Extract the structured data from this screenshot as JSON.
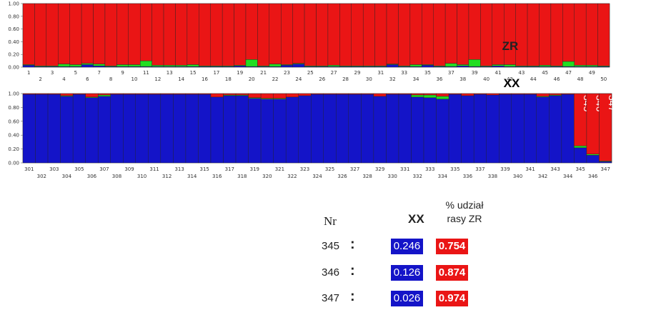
{
  "colors": {
    "xx": "#1414c8",
    "zr": "#ea1515",
    "other": "#22dd22"
  },
  "chart_data": [
    {
      "type": "bar",
      "stacked": true,
      "categories": [
        "1",
        "2",
        "3",
        "4",
        "5",
        "6",
        "7",
        "8",
        "9",
        "10",
        "11",
        "12",
        "13",
        "14",
        "15",
        "16",
        "17",
        "18",
        "19",
        "20",
        "21",
        "22",
        "23",
        "24",
        "25",
        "26",
        "27",
        "28",
        "29",
        "30",
        "31",
        "32",
        "33",
        "34",
        "35",
        "36",
        "37",
        "38",
        "39",
        "40",
        "41",
        "42",
        "43",
        "44",
        "45",
        "46",
        "47",
        "48",
        "49",
        "50"
      ],
      "series": [
        {
          "key": "xx",
          "values": [
            0.03,
            0.01,
            0.01,
            0.01,
            0.01,
            0.04,
            0.02,
            0.01,
            0.01,
            0.01,
            0.01,
            0.01,
            0.01,
            0.01,
            0.01,
            0.01,
            0.01,
            0.01,
            0.02,
            0.01,
            0.01,
            0.01,
            0.03,
            0.05,
            0.01,
            0.01,
            0.01,
            0.01,
            0.01,
            0.01,
            0.01,
            0.04,
            0.01,
            0.01,
            0.03,
            0.01,
            0.01,
            0.02,
            0.01,
            0.01,
            0.02,
            0.01,
            0.01,
            0.01,
            0.01,
            0.01,
            0.01,
            0.01,
            0.01,
            0.01
          ]
        },
        {
          "key": "other",
          "values": [
            0.01,
            0.01,
            0.01,
            0.04,
            0.03,
            0.02,
            0.03,
            0.01,
            0.03,
            0.03,
            0.09,
            0.02,
            0.02,
            0.02,
            0.03,
            0.01,
            0.01,
            0.01,
            0.01,
            0.11,
            0.01,
            0.04,
            0.01,
            0.01,
            0.01,
            0.01,
            0.02,
            0.01,
            0.01,
            0.01,
            0.01,
            0.01,
            0.01,
            0.03,
            0.01,
            0.01,
            0.05,
            0.02,
            0.11,
            0.01,
            0.02,
            0.03,
            0.01,
            0.01,
            0.02,
            0.01,
            0.08,
            0.02,
            0.02,
            0.01
          ]
        },
        {
          "key": "zr",
          "values": [
            0.96,
            0.98,
            0.98,
            0.95,
            0.96,
            0.94,
            0.95,
            0.98,
            0.96,
            0.96,
            0.9,
            0.97,
            0.97,
            0.97,
            0.96,
            0.98,
            0.98,
            0.98,
            0.97,
            0.88,
            0.98,
            0.95,
            0.96,
            0.94,
            0.98,
            0.98,
            0.97,
            0.98,
            0.98,
            0.98,
            0.98,
            0.95,
            0.98,
            0.96,
            0.96,
            0.98,
            0.94,
            0.96,
            0.88,
            0.98,
            0.96,
            0.96,
            0.98,
            0.98,
            0.97,
            0.98,
            0.91,
            0.97,
            0.97,
            0.98
          ]
        }
      ],
      "ylim": [
        0,
        1
      ],
      "yticks": [
        "0.00",
        "0.20",
        "0.40",
        "0.60",
        "0.80",
        "1.00"
      ],
      "label": "ZR"
    },
    {
      "type": "bar",
      "stacked": true,
      "categories": [
        "301",
        "302",
        "303",
        "304",
        "305",
        "306",
        "307",
        "308",
        "309",
        "310",
        "311",
        "312",
        "313",
        "314",
        "315",
        "316",
        "317",
        "318",
        "319",
        "320",
        "321",
        "322",
        "323",
        "324",
        "325",
        "326",
        "327",
        "328",
        "329",
        "330",
        "331",
        "332",
        "333",
        "334",
        "335",
        "336",
        "337",
        "338",
        "339",
        "340",
        "341",
        "342",
        "343",
        "344",
        "345",
        "346",
        "347"
      ],
      "series": [
        {
          "key": "xx",
          "values": [
            0.99,
            0.99,
            0.99,
            0.96,
            0.99,
            0.94,
            0.96,
            0.99,
            0.99,
            0.99,
            0.99,
            0.99,
            0.99,
            0.99,
            0.99,
            0.95,
            0.97,
            0.97,
            0.93,
            0.92,
            0.92,
            0.95,
            0.97,
            0.99,
            0.99,
            0.99,
            0.99,
            0.99,
            0.96,
            0.99,
            0.99,
            0.95,
            0.94,
            0.92,
            0.99,
            0.97,
            0.99,
            0.98,
            0.99,
            0.99,
            0.99,
            0.95,
            0.97,
            0.99,
            0.218,
            0.11,
            0.018
          ]
        },
        {
          "key": "other",
          "values": [
            0.0,
            0.0,
            0.0,
            0.01,
            0.0,
            0.01,
            0.02,
            0.0,
            0.0,
            0.0,
            0.0,
            0.0,
            0.0,
            0.0,
            0.0,
            0.0,
            0.01,
            0.01,
            0.01,
            0.01,
            0.01,
            0.0,
            0.0,
            0.0,
            0.0,
            0.0,
            0.0,
            0.0,
            0.0,
            0.0,
            0.0,
            0.03,
            0.04,
            0.04,
            0.0,
            0.0,
            0.0,
            0.0,
            0.0,
            0.0,
            0.0,
            0.01,
            0.01,
            0.0,
            0.028,
            0.016,
            0.008
          ]
        },
        {
          "key": "zr",
          "values": [
            0.01,
            0.01,
            0.01,
            0.03,
            0.01,
            0.05,
            0.02,
            0.01,
            0.01,
            0.01,
            0.01,
            0.01,
            0.01,
            0.01,
            0.01,
            0.05,
            0.02,
            0.02,
            0.06,
            0.07,
            0.07,
            0.05,
            0.03,
            0.01,
            0.01,
            0.01,
            0.01,
            0.01,
            0.04,
            0.01,
            0.01,
            0.02,
            0.02,
            0.04,
            0.01,
            0.03,
            0.01,
            0.02,
            0.01,
            0.01,
            0.01,
            0.04,
            0.02,
            0.01,
            0.754,
            0.874,
            0.974
          ]
        }
      ],
      "ylim": [
        0,
        1
      ],
      "yticks": [
        "0.00",
        "0.20",
        "0.40",
        "0.60",
        "0.80",
        "1.00"
      ],
      "label": "XX",
      "bar_labels": {
        "345": "345",
        "346": "346",
        "347": "347"
      }
    }
  ],
  "table": {
    "header_nr": "Nr",
    "header_xx": "XX",
    "header_zr_line1": "% udział",
    "header_zr_line2": "rasy ZR",
    "rows": [
      {
        "nr": "345",
        "colon": ":",
        "xx": "0.246",
        "zr": "0.754"
      },
      {
        "nr": "346",
        "colon": ":",
        "xx": "0.126",
        "zr": "0.874"
      },
      {
        "nr": "347",
        "colon": ":",
        "xx": "0.026",
        "zr": "0.974"
      }
    ]
  }
}
